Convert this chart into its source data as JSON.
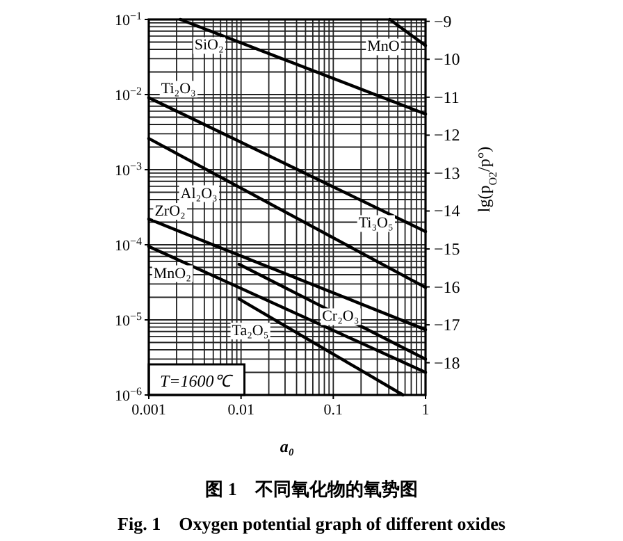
{
  "chart_data": {
    "type": "line",
    "title": "图 1　不同氧化物的氧势图",
    "subtitle": "Fig. 1　Oxygen potential graph of different oxides",
    "xlabel": "a₀",
    "y2label": "lg(p$_{O2}$/p°)",
    "log": "xy",
    "grid": true,
    "xlim": [
      0.001,
      1
    ],
    "xticks": [
      0.001,
      0.01,
      0.1,
      1
    ],
    "ylim": [
      1e-06,
      0.1
    ],
    "yticks": [
      {
        "value": 0.1,
        "label": "10$^{−1}$"
      },
      {
        "value": 0.01,
        "label": "10$^{−2}$"
      },
      {
        "value": 0.001,
        "label": "10$^{−3}$"
      },
      {
        "value": 0.0001,
        "label": "10$^{−4}$"
      },
      {
        "value": 1e-05,
        "label": "10$^{−5}$"
      },
      {
        "value": 1e-06,
        "label": "10$^{−6}$"
      }
    ],
    "y2lim": [
      -18.85,
      -8.95
    ],
    "y2ticks": [
      -9,
      -10,
      -11,
      -12,
      -13,
      -14,
      -15,
      -16,
      -17,
      -18
    ],
    "series": [
      {
        "color": "#000000",
        "x": [
          0.0022,
          1
        ],
        "values": [
          0.1,
          0.0055
        ]
      },
      {
        "color": "#000000",
        "x": [
          0.41,
          1
        ],
        "values": [
          0.1,
          0.045
        ]
      },
      {
        "color": "#000000",
        "x": [
          0.001,
          1
        ],
        "values": [
          0.0091,
          0.00015
        ]
      },
      {
        "color": "#000000",
        "x": [
          0.001,
          1
        ],
        "values": [
          0.0026,
          2.7e-05
        ]
      },
      {
        "color": "#000000",
        "x": [
          0.001,
          1
        ],
        "values": [
          0.00022,
          7.4e-06
        ]
      },
      {
        "color": "#000000",
        "x": [
          0.001,
          1
        ],
        "values": [
          9.5e-05,
          2e-06
        ]
      },
      {
        "color": "#000000",
        "x": [
          0.0095,
          1
        ],
        "values": [
          5.5e-05,
          3e-06
        ]
      },
      {
        "color": "#000000",
        "x": [
          0.0095,
          0.57
        ],
        "values": [
          1.9e-05,
          1e-06
        ]
      }
    ],
    "annotations": [
      "T=1600℃",
      {
        "text": "SiO₂",
        "x": 0.0045,
        "y": 0.047
      },
      {
        "text": "MnO",
        "x": 0.35,
        "y": 0.045
      },
      {
        "text": "Ti₂O₃",
        "x": 0.0021,
        "y": 0.0123
      },
      {
        "text": "Al₂O₃",
        "x": 0.0035,
        "y": 0.0005
      },
      {
        "text": "ZrO₂",
        "x": 0.0017,
        "y": 0.00029
      },
      {
        "text": "Ti₃O₅",
        "x": 0.29,
        "y": 0.0002
      },
      {
        "text": "MnO₂",
        "x": 0.0018,
        "y": 4.3e-05
      },
      {
        "text": "Cr₂O₃",
        "x": 0.12,
        "y": 1.15e-05
      },
      {
        "text": "Ta₂O₅",
        "x": 0.0126,
        "y": 7.4e-06
      }
    ]
  }
}
